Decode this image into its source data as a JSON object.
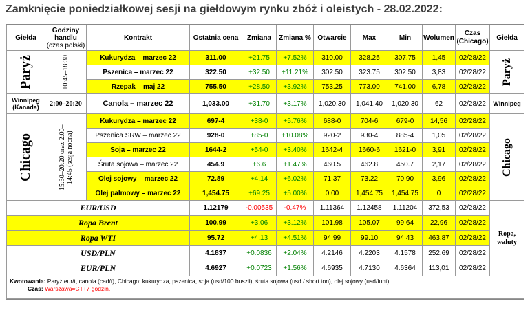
{
  "title": "Zamknięcie poniedziałkowej sesji na giełdowym rynku zbóż i oleistych - 28.02.2022:",
  "headers": {
    "exchange": "Giełda",
    "hours": "Godziny handlu",
    "hours_sub": "(czas polski)",
    "contract": "Kontrakt",
    "last": "Ostatnia cena",
    "change": "Zmiana",
    "change_pct": "Zmiana %",
    "open": "Otwarcie",
    "max": "Max",
    "min": "Min",
    "volume": "Wolumen",
    "time": "Czas (Chicago)",
    "exchange_right": "Giełda"
  },
  "groups": {
    "paris": {
      "name": "Paryż",
      "hours": "10:45–18:30"
    },
    "winnipeg": {
      "name": "Winnipeg",
      "name_sub": "(Kanada)",
      "hours": "2:00–20:20",
      "right": "Winnipeg"
    },
    "chicago": {
      "name": "Chicago",
      "hours": "15:30–20:20 oraz 2:00–14:45 (sesja nocna)"
    },
    "fx": {
      "right": "Ropa, waluty"
    }
  },
  "rows": [
    {
      "contract": "Kukurydza – marzec 22",
      "last": "311.00",
      "change": "+21.75",
      "pct": "+7.52%",
      "open": "310.00",
      "max": "328.25",
      "min": "307.75",
      "vol": "1,45",
      "time": "02/28/22"
    },
    {
      "contract": "Pszenica – marzec 22",
      "last": "322.50",
      "change": "+32.50",
      "pct": "+11.21%",
      "open": "302.50",
      "max": "323.75",
      "min": "302.50",
      "vol": "3,83",
      "time": "02/28/22"
    },
    {
      "contract": "Rzepak – maj 22",
      "last": "755.50",
      "change": "+28.50",
      "pct": "+3.92%",
      "open": "753.25",
      "max": "773.00",
      "min": "741.00",
      "vol": "6,78",
      "time": "02/28/22"
    },
    {
      "contract": "Canola – marzec 22",
      "last": "1,033.00",
      "change": "+31.70",
      "pct": "+3.17%",
      "open": "1,020.30",
      "max": "1,041.40",
      "min": "1,020.30",
      "vol": "62",
      "time": "02/28/22"
    },
    {
      "contract": "Kukurydza – marzec 22",
      "last": "697-4",
      "change": "+38-0",
      "pct": "+5.76%",
      "open": "688-0",
      "max": "704-6",
      "min": "679-0",
      "vol": "14,56",
      "time": "02/28/22"
    },
    {
      "contract": "Pszenica SRW – marzec 22",
      "last": "928-0",
      "change": "+85-0",
      "pct": "+10.08%",
      "open": "920-2",
      "max": "930-4",
      "min": "885-4",
      "vol": "1,05",
      "time": "02/28/22"
    },
    {
      "contract": "Soja – marzec 22",
      "last": "1644-2",
      "change": "+54-0",
      "pct": "+3.40%",
      "open": "1642-4",
      "max": "1660-6",
      "min": "1621-0",
      "vol": "3,91",
      "time": "02/28/22"
    },
    {
      "contract": "Śruta sojowa – marzec 22",
      "last": "454.9",
      "change": "+6.6",
      "pct": "+1.47%",
      "open": "460.5",
      "max": "462.8",
      "min": "450.7",
      "vol": "2,17",
      "time": "02/28/22"
    },
    {
      "contract": "Olej sojowy – marzec 22",
      "last": "72.89",
      "change": "+4.14",
      "pct": "+6.02%",
      "open": "71.37",
      "max": "73.22",
      "min": "70.90",
      "vol": "3,96",
      "time": "02/28/22"
    },
    {
      "contract": "Olej palmowy – marzec 22",
      "last": "1,454.75",
      "change": "+69.25",
      "pct": "+5.00%",
      "open": "0.00",
      "max": "1,454.75",
      "min": "1,454.75",
      "vol": "0",
      "time": "02/28/22"
    },
    {
      "contract": "EUR/USD",
      "last": "1.12179",
      "change": "-0.00535",
      "pct": "-0.47%",
      "open": "1.11364",
      "max": "1.12458",
      "min": "1.11204",
      "vol": "372,53",
      "time": "02/28/22"
    },
    {
      "contract": "Ropa Brent",
      "last": "100.99",
      "change": "+3.06",
      "pct": "+3.12%",
      "open": "101.98",
      "max": "105.07",
      "min": "99.64",
      "vol": "22,96",
      "time": "02/28/22"
    },
    {
      "contract": "Ropa WTI",
      "last": "95.72",
      "change": "+4.13",
      "pct": "+4.51%",
      "open": "94.99",
      "max": "99.10",
      "min": "94.43",
      "vol": "463,87",
      "time": "02/28/22"
    },
    {
      "contract": "USD/PLN",
      "last": "4.1837",
      "change": "+0.0836",
      "pct": "+2.04%",
      "open": "4.2146",
      "max": "4.2203",
      "min": "4.1578",
      "vol": "252,69",
      "time": "02/28/22"
    },
    {
      "contract": "EUR/PLN",
      "last": "4.6927",
      "change": "+0.0723",
      "pct": "+1.56%",
      "open": "4.6935",
      "max": "4.7130",
      "min": "4.6364",
      "vol": "113,01",
      "time": "02/28/22"
    }
  ],
  "footer": {
    "quotes_label": "Kwotowania:",
    "quotes_text": "Paryż eur/t, canola (cad/t), Chicago: kukurydza, pszenica, soja (usd/100 buszli), śruta sojowa (usd / short ton), olej sojowy (usd/funt).",
    "time_label": "Czas:",
    "time_text": "Warszawa=CT+7 godzin."
  },
  "colors": {
    "highlight": "#ffff00",
    "positive": "#008000",
    "negative": "#ff0000",
    "title": "#3b3b3b"
  }
}
